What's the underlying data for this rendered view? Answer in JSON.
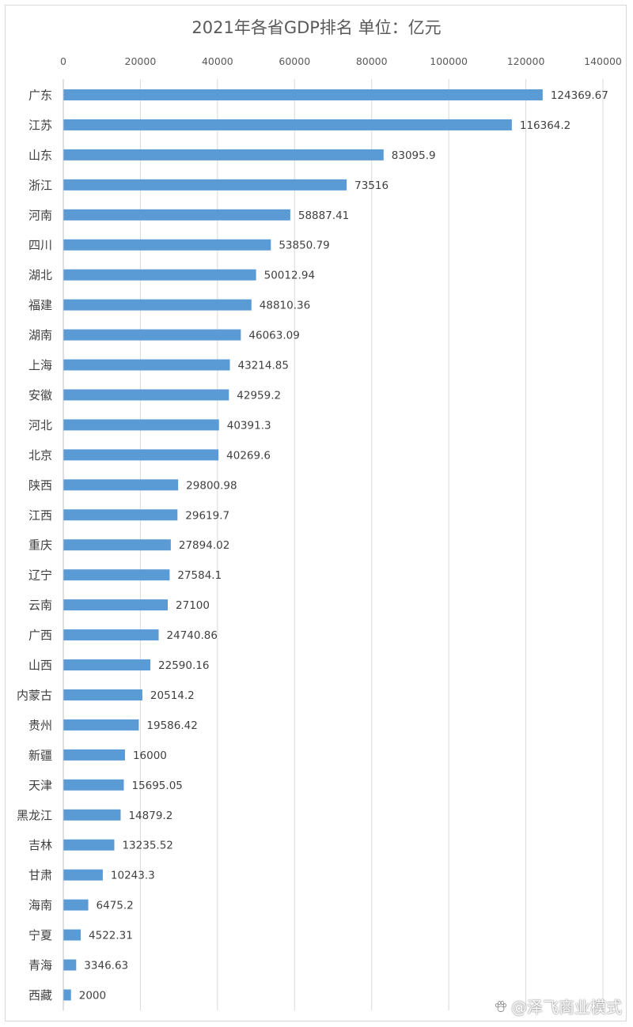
{
  "chart_data": {
    "type": "bar",
    "orientation": "horizontal",
    "title": "2021年各省GDP排名  单位：亿元",
    "xlim": [
      0,
      140000
    ],
    "xticks": [
      0,
      20000,
      40000,
      60000,
      80000,
      100000,
      120000,
      140000
    ],
    "grid": true,
    "bar_color": "#5b9bd5",
    "categories": [
      "广东",
      "江苏",
      "山东",
      "浙江",
      "河南",
      "四川",
      "湖北",
      "福建",
      "湖南",
      "上海",
      "安徽",
      "河北",
      "北京",
      "陕西",
      "江西",
      "重庆",
      "辽宁",
      "云南",
      "广西",
      "山西",
      "内蒙古",
      "贵州",
      "新疆",
      "天津",
      "黑龙江",
      "吉林",
      "甘肃",
      "海南",
      "宁夏",
      "青海",
      "西藏"
    ],
    "values": [
      124369.67,
      116364.2,
      83095.9,
      73516,
      58887.41,
      53850.79,
      50012.94,
      48810.36,
      46063.09,
      43214.85,
      42959.2,
      40391.3,
      40269.6,
      29800.98,
      29619.7,
      27894.02,
      27584.1,
      27100,
      24740.86,
      22590.16,
      20514.2,
      19586.42,
      16000,
      15695.05,
      14879.2,
      13235.52,
      10243.3,
      6475.2,
      4522.31,
      3346.63,
      2000
    ],
    "value_labels": [
      "124369.67",
      "116364.2",
      "83095.9",
      "73516",
      "58887.41",
      "53850.79",
      "50012.94",
      "48810.36",
      "46063.09",
      "43214.85",
      "42959.2",
      "40391.3",
      "40269.6",
      "29800.98",
      "29619.7",
      "27894.02",
      "27584.1",
      "27100",
      "24740.86",
      "22590.16",
      "20514.2",
      "19586.42",
      "16000",
      "15695.05",
      "14879.2",
      "13235.52",
      "10243.3",
      "6475.2",
      "4522.31",
      "3346.63",
      "2000"
    ]
  },
  "watermark": {
    "text": "@泽飞商业模式",
    "icon": "paw-icon"
  }
}
